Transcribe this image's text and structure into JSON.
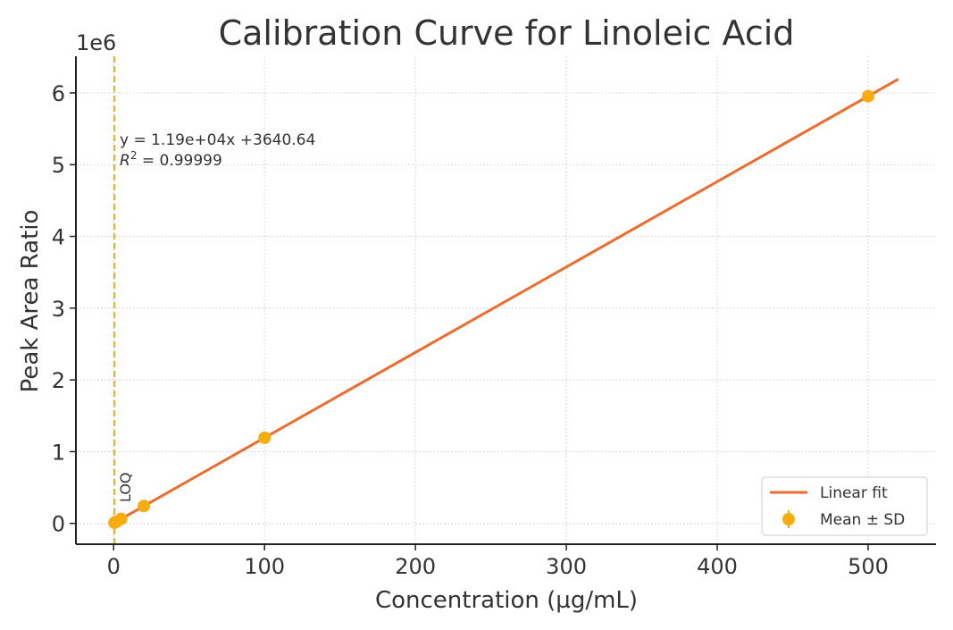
{
  "chart_data": {
    "type": "scatter",
    "title": "Calibration Curve for Linoleic Acid",
    "xlabel": "Concentration (µg/mL)",
    "ylabel": "Peak Area Ratio",
    "y_offset_label": "1e6",
    "xlim": [
      -25,
      545
    ],
    "ylim": [
      -0.29,
      6.51
    ],
    "y_scale": 1000000,
    "xticks": [
      0,
      100,
      200,
      300,
      400,
      500
    ],
    "yticks": [
      0,
      1,
      2,
      3,
      4,
      5,
      6
    ],
    "grid": true,
    "points": {
      "name": "Mean ± SD",
      "x": [
        0.5,
        1,
        2,
        5,
        20,
        100,
        500
      ],
      "y": [
        9590,
        15540,
        27440,
        63140,
        241640,
        1193640,
        5953640
      ]
    },
    "fit": {
      "name": "Linear fit",
      "slope": 11900,
      "intercept": 3640.64,
      "x_range": [
        0,
        520
      ]
    },
    "annotation_equation": "y = 1.19e+04x +3640.64",
    "annotation_r2_label": "R",
    "annotation_r2_value": " = 0.99999",
    "loq": {
      "x": 0.5,
      "label": "LOQ"
    },
    "legend": {
      "placement": "bottom-right",
      "entries": [
        "Linear fit",
        "Mean ± SD"
      ]
    },
    "colors": {
      "fit": "#ee6c2b",
      "points": "#f8ad0d",
      "loq": "#f8ad0d",
      "grid": "#d8d8d8"
    }
  }
}
